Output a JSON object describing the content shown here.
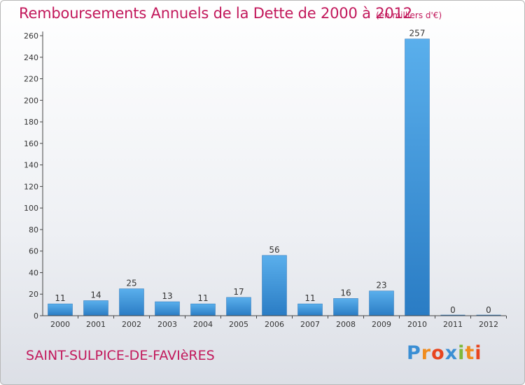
{
  "chart_data": {
    "type": "bar",
    "title": "Remboursements Annuels de la Dette de 2000 à 2012",
    "unit_label": "(en milliers d'€)",
    "categories": [
      "2000",
      "2001",
      "2002",
      "2003",
      "2004",
      "2005",
      "2006",
      "2007",
      "2008",
      "2009",
      "2010",
      "2011",
      "2012"
    ],
    "values": [
      11,
      14,
      25,
      13,
      11,
      17,
      56,
      11,
      16,
      23,
      257,
      0,
      0
    ],
    "ylim": [
      0,
      260
    ],
    "yticks": [
      0,
      20,
      40,
      60,
      80,
      100,
      120,
      140,
      160,
      180,
      200,
      220,
      240,
      260
    ],
    "xlabel": "",
    "ylabel": "",
    "bar_color": "#3a8fd6"
  },
  "footer": {
    "commune": "SAINT-SULPICE-DE-FAVIèRES",
    "logo": {
      "p": "P",
      "r": "r",
      "o": "o",
      "x": "x",
      "i": "i",
      "t": "t",
      "i2": "i"
    }
  }
}
